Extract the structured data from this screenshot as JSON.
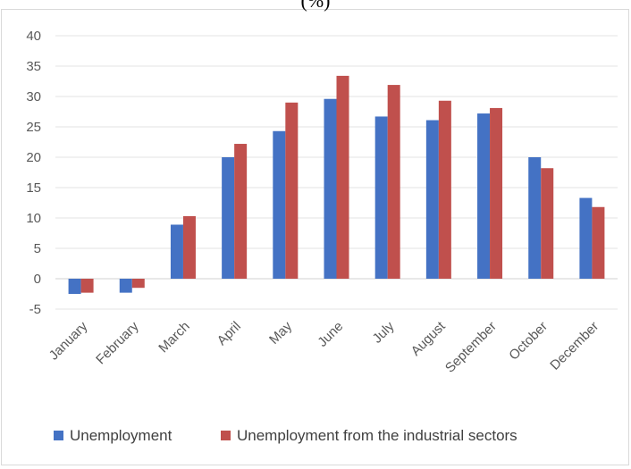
{
  "chart_data": {
    "type": "bar",
    "title": "(%)",
    "categories": [
      "January",
      "February",
      "March",
      "April",
      "May",
      "June",
      "July",
      "August",
      "September",
      "October",
      "December"
    ],
    "series": [
      {
        "name": "Unemployment",
        "color": "#4472c4",
        "values": [
          -2.5,
          -2.3,
          8.9,
          20.0,
          24.3,
          29.6,
          26.7,
          26.1,
          27.2,
          20.0,
          13.3
        ]
      },
      {
        "name": "Unemployment from the industrial sectors",
        "color": "#c0504d",
        "values": [
          -2.3,
          -1.5,
          10.3,
          22.2,
          29.0,
          33.4,
          31.9,
          29.3,
          28.1,
          18.2,
          11.8
        ]
      }
    ],
    "yticks": [
      -5,
      0,
      5,
      10,
      15,
      20,
      25,
      30,
      35,
      40
    ],
    "ylim": [
      -5,
      40
    ],
    "grid": true,
    "legend_position": "bottom",
    "xlabel": "",
    "ylabel": ""
  }
}
